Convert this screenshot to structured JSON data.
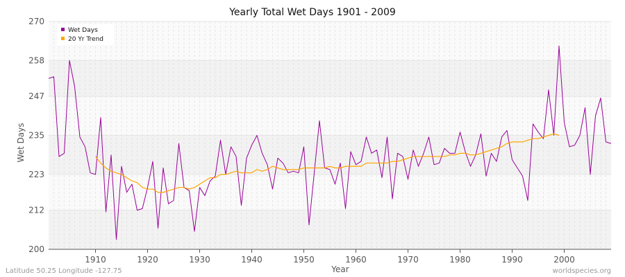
{
  "chart_data": {
    "type": "line",
    "title": "Yearly Total Wet Days 1901 - 2009",
    "xlabel": "Year",
    "ylabel": "Wet Days",
    "xlim": [
      1901,
      2009
    ],
    "ylim": [
      200,
      270
    ],
    "yticks": [
      200,
      212,
      223,
      235,
      247,
      258,
      270
    ],
    "xticks": [
      1910,
      1920,
      1930,
      1940,
      1950,
      1960,
      1970,
      1980,
      1990,
      2000
    ],
    "grid": true,
    "legend_position": "top-left",
    "series": [
      {
        "name": "Wet Days",
        "color": "#990099",
        "x": [
          1901,
          1902,
          1903,
          1904,
          1905,
          1906,
          1907,
          1908,
          1909,
          1910,
          1911,
          1912,
          1913,
          1914,
          1915,
          1916,
          1917,
          1918,
          1919,
          1920,
          1921,
          1922,
          1923,
          1924,
          1925,
          1926,
          1927,
          1928,
          1929,
          1930,
          1931,
          1932,
          1933,
          1934,
          1935,
          1936,
          1937,
          1938,
          1939,
          1940,
          1941,
          1942,
          1943,
          1944,
          1945,
          1946,
          1947,
          1948,
          1949,
          1950,
          1951,
          1952,
          1953,
          1954,
          1955,
          1956,
          1957,
          1958,
          1959,
          1960,
          1961,
          1962,
          1963,
          1964,
          1965,
          1966,
          1967,
          1968,
          1969,
          1970,
          1971,
          1972,
          1973,
          1974,
          1975,
          1976,
          1977,
          1978,
          1979,
          1980,
          1981,
          1982,
          1983,
          1984,
          1985,
          1986,
          1987,
          1988,
          1989,
          1990,
          1991,
          1992,
          1993,
          1994,
          1995,
          1996,
          1997,
          1998,
          1999,
          2000,
          2001,
          2002,
          2003,
          2004,
          2005,
          2006,
          2007,
          2008,
          2009
        ],
        "values": [
          252.5,
          253.0,
          228.5,
          229.5,
          258.0,
          250.0,
          234.5,
          231.5,
          223.5,
          223.0,
          240.5,
          211.5,
          229.0,
          203.0,
          225.5,
          217.5,
          220.0,
          212.0,
          212.5,
          219.0,
          227.0,
          206.5,
          225.0,
          214.0,
          215.0,
          232.5,
          219.0,
          218.0,
          205.5,
          219.0,
          216.5,
          221.0,
          222.5,
          233.5,
          223.0,
          231.5,
          228.5,
          213.5,
          228.0,
          232.0,
          235.0,
          229.5,
          226.0,
          218.5,
          228.0,
          226.5,
          223.5,
          224.0,
          223.5,
          231.5,
          207.5,
          223.5,
          239.5,
          225.0,
          224.5,
          220.0,
          226.5,
          212.5,
          230.0,
          226.0,
          227.0,
          234.5,
          229.5,
          230.5,
          222.0,
          234.5,
          215.5,
          229.5,
          228.5,
          221.5,
          230.5,
          225.5,
          229.5,
          234.5,
          226.0,
          226.5,
          231.0,
          229.5,
          229.5,
          236.0,
          230.0,
          225.5,
          229.0,
          235.5,
          222.5,
          229.5,
          227.0,
          234.5,
          236.5,
          227.5,
          225.0,
          222.5,
          215.0,
          238.5,
          236.0,
          234.0,
          249.0,
          235.0,
          262.5,
          239.0,
          231.5,
          232.0,
          235.0,
          243.5,
          223.0,
          241.0,
          246.5,
          233.0,
          232.5
        ]
      },
      {
        "name": "20 Yr Trend",
        "color": "#ffa500",
        "x": [
          1910,
          1911,
          1912,
          1913,
          1914,
          1915,
          1916,
          1917,
          1918,
          1919,
          1920,
          1921,
          1922,
          1923,
          1924,
          1925,
          1926,
          1927,
          1928,
          1929,
          1930,
          1931,
          1932,
          1933,
          1934,
          1935,
          1936,
          1937,
          1938,
          1939,
          1940,
          1941,
          1942,
          1943,
          1944,
          1945,
          1946,
          1947,
          1948,
          1949,
          1950,
          1951,
          1952,
          1953,
          1954,
          1955,
          1956,
          1957,
          1958,
          1959,
          1960,
          1961,
          1962,
          1963,
          1964,
          1965,
          1966,
          1967,
          1968,
          1969,
          1970,
          1971,
          1972,
          1973,
          1974,
          1975,
          1976,
          1977,
          1978,
          1979,
          1980,
          1981,
          1982,
          1983,
          1984,
          1985,
          1986,
          1987,
          1988,
          1989,
          1990,
          1991,
          1992,
          1993,
          1994,
          1995,
          1996,
          1997,
          1998,
          1999
        ],
        "values": [
          228.5,
          226.5,
          225.0,
          224.0,
          223.5,
          223.0,
          222.0,
          221.0,
          220.5,
          219.0,
          218.5,
          218.5,
          217.5,
          217.5,
          218.0,
          218.5,
          219.0,
          219.0,
          218.5,
          219.0,
          220.0,
          221.0,
          222.0,
          222.0,
          223.0,
          223.0,
          223.5,
          224.0,
          223.5,
          223.5,
          223.5,
          224.5,
          224.0,
          224.5,
          225.5,
          225.0,
          224.5,
          224.5,
          224.5,
          224.5,
          225.0,
          225.0,
          225.0,
          225.0,
          225.0,
          225.5,
          225.0,
          225.0,
          225.5,
          225.5,
          225.5,
          225.5,
          226.5,
          226.5,
          226.5,
          226.5,
          226.5,
          227.0,
          227.0,
          227.5,
          228.0,
          228.5,
          228.5,
          228.5,
          228.5,
          228.5,
          228.5,
          228.5,
          229.0,
          229.0,
          229.5,
          229.5,
          229.0,
          229.0,
          229.5,
          230.0,
          230.5,
          231.0,
          231.5,
          232.5,
          233.0,
          233.0,
          233.0,
          233.5,
          234.0,
          234.0,
          234.5,
          235.0,
          235.5,
          235.0
        ]
      }
    ]
  },
  "footer": {
    "left": "Latitude 50.25 Longitude -127.75",
    "right": "worldspecies.org"
  }
}
